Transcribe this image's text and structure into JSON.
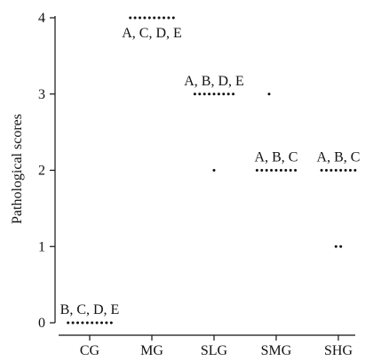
{
  "chart_data": {
    "type": "scatter",
    "title": "",
    "xlabel": "",
    "ylabel": "Pathological scores",
    "ylim": [
      0,
      4
    ],
    "yticks": [
      0,
      1,
      2,
      3,
      4
    ],
    "categories": [
      "CG",
      "MG",
      "SLG",
      "SMG",
      "SHG"
    ],
    "groups": [
      {
        "category": "CG",
        "points": [
          0,
          0,
          0,
          0,
          0,
          0,
          0,
          0,
          0,
          0
        ],
        "annotation": "B, C, D, E"
      },
      {
        "category": "MG",
        "points": [
          4,
          4,
          4,
          4,
          4,
          4,
          4,
          4,
          4,
          4
        ],
        "annotation": "A, C, D, E"
      },
      {
        "category": "SLG",
        "points": [
          3,
          3,
          3,
          3,
          3,
          3,
          3,
          3,
          3,
          2
        ],
        "annotation": "A, B, D, E"
      },
      {
        "category": "SMG",
        "points": [
          3,
          2,
          2,
          2,
          2,
          2,
          2,
          2,
          2,
          2
        ],
        "annotation": "A, B, C"
      },
      {
        "category": "SHG",
        "points": [
          2,
          2,
          2,
          2,
          2,
          2,
          2,
          2,
          1,
          1
        ],
        "annotation": "A, B, C"
      }
    ],
    "grid": false
  }
}
